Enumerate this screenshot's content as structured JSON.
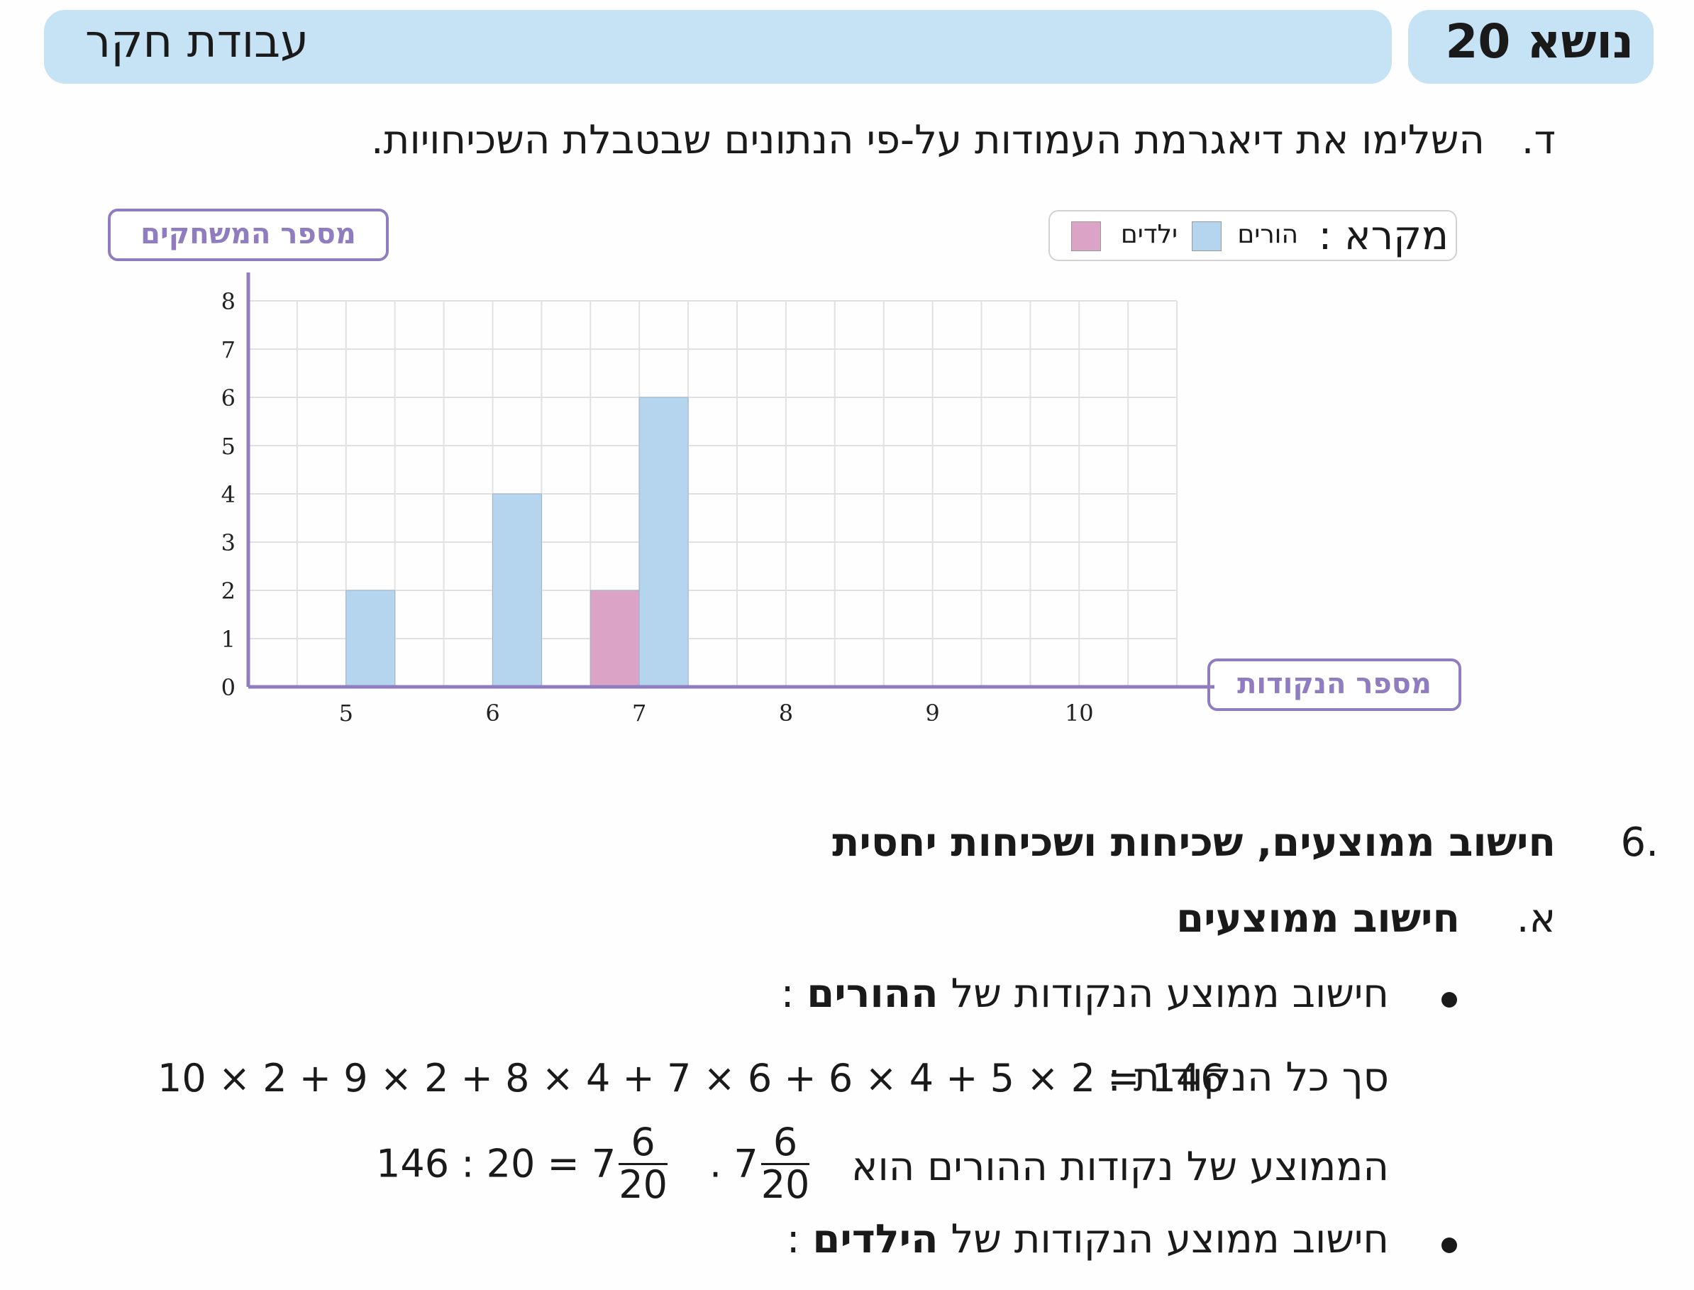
{
  "header": {
    "title": "עבודת חקר",
    "topic": "נושא 20"
  },
  "question_d": {
    "letter": "ד.",
    "text": "השלימו את דיאגרמת העמודות על-פי הנתונים שבטבלת השכיחויות."
  },
  "legend": {
    "title": "מקרא :",
    "parents": "הורים",
    "children": "ילדים"
  },
  "colors": {
    "parents": "#b5d5ee",
    "children": "#dba4c6",
    "axis": "#8f7dbf",
    "grid": "#e1e1e1"
  },
  "chart_data": {
    "type": "bar",
    "xlabel": "מספר הנקודות",
    "ylabel": "מספר המשחקים",
    "categories": [
      5,
      6,
      7,
      8,
      9,
      10
    ],
    "series": [
      {
        "name": "ילדים",
        "values": [
          0,
          0,
          2,
          0,
          0,
          0
        ]
      },
      {
        "name": "הורים",
        "values": [
          2,
          4,
          6,
          0,
          0,
          0
        ]
      }
    ],
    "ylim": [
      0,
      8
    ],
    "yticks": [
      0,
      1,
      2,
      3,
      4,
      5,
      6,
      7,
      8
    ],
    "grid": true,
    "legend": "top-right"
  },
  "section6": {
    "number": ".6",
    "title": "חישוב ממוצעים, שכיחות ושכיחות יחסית"
  },
  "section_a": {
    "letter": "א.",
    "title": "חישוב ממוצעים"
  },
  "bullet1": {
    "prefix": "חישוב ממוצע הנקודות של ",
    "emph": "ההורים",
    "suffix": " :"
  },
  "total_line": {
    "label": "סך כל הנקודות :",
    "expression": "10 × 2 + 9 × 2 + 8 × 4 + 7 × 6 + 6 × 4 + 5 × 2 = 146"
  },
  "average_line": {
    "text": "הממוצע של נקודות ההורים הוא",
    "whole": "7",
    "numerator": "6",
    "denominator": "20",
    "calc_left": "146 : 20 = 7"
  },
  "bullet2": {
    "prefix": "חישוב ממוצע הנקודות של ",
    "emph": "הילדים",
    "suffix": " :"
  }
}
